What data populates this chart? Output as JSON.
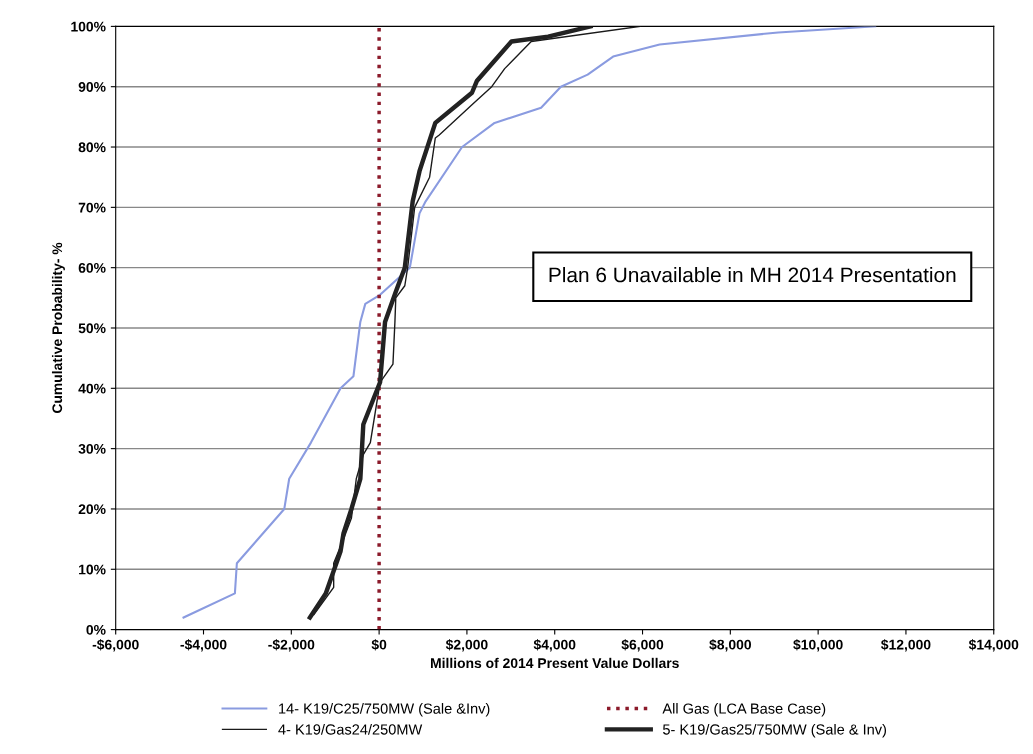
{
  "chart_data": {
    "type": "line",
    "xlabel": "Millions of 2014 Present Value Dollars",
    "ylabel": "Cumulative Probability- %",
    "xlim": [
      -6000,
      14000
    ],
    "xticks": [
      {
        "value": -6000,
        "label": "-$6,000"
      },
      {
        "value": -4000,
        "label": "-$4,000"
      },
      {
        "value": -2000,
        "label": "-$2,000"
      },
      {
        "value": 0,
        "label": "$0"
      },
      {
        "value": 2000,
        "label": "$2,000"
      },
      {
        "value": 4000,
        "label": "$4,000"
      },
      {
        "value": 6000,
        "label": "$6,000"
      },
      {
        "value": 8000,
        "label": "$8,000"
      },
      {
        "value": 10000,
        "label": "$10,000"
      },
      {
        "value": 12000,
        "label": "$12,000"
      },
      {
        "value": 14000,
        "label": "$14,000"
      }
    ],
    "ylim": [
      0,
      100
    ],
    "yticks": [
      {
        "value": 0,
        "label": "0%"
      },
      {
        "value": 10,
        "label": "10%"
      },
      {
        "value": 20,
        "label": "20%"
      },
      {
        "value": 30,
        "label": "30%"
      },
      {
        "value": 40,
        "label": "40%"
      },
      {
        "value": 50,
        "label": "50%"
      },
      {
        "value": 60,
        "label": "60%"
      },
      {
        "value": 70,
        "label": "70%"
      },
      {
        "value": 80,
        "label": "80%"
      },
      {
        "value": 90,
        "label": "90%"
      },
      {
        "value": 100,
        "label": "100%"
      }
    ],
    "grid": "y",
    "legend": "bottom",
    "marker": "none",
    "annotations": [
      "Plan 6 Unavailable in MH 2014 Presentation"
    ],
    "series": [
      {
        "name": "14- K19/C25/750MW (Sale &Inv)",
        "color": "#8a9be0",
        "line_style": "solid",
        "x": [
          -4455,
          -3285,
          -3240,
          -2160,
          -2048,
          -1553,
          -878,
          -585,
          -428,
          -315,
          22,
          700,
          920,
          1060,
          1890,
          2630,
          3690,
          4140,
          4750,
          5330,
          6390,
          9090,
          11300
        ],
        "values": [
          2,
          6,
          11,
          20,
          25,
          31,
          40,
          42,
          51,
          54,
          55.5,
          60,
          69,
          71,
          80,
          84,
          86.5,
          90,
          92,
          95,
          97,
          99,
          100
        ]
      },
      {
        "name": "4- K19/Gas24/250MW",
        "color": "#1a1a1a",
        "line_style": "solid",
        "x": [
          -1485,
          -1035,
          -1035,
          -810,
          -630,
          -520,
          -360,
          -200,
          22,
          315,
          360,
          380,
          585,
          650,
          810,
          1150,
          1280,
          1370,
          2115,
          2565,
          2860,
          3465,
          5940
        ],
        "values": [
          2.5,
          7,
          11,
          15,
          18.5,
          25,
          29,
          31,
          41,
          44,
          51,
          55,
          57,
          60,
          70,
          75,
          81.5,
          82,
          87,
          90,
          93,
          97.5,
          100
        ]
      },
      {
        "name": "All Gas (LCA Base Case)",
        "color": "#8b1a2a",
        "line_style": "dotted",
        "x": [
          0,
          0
        ],
        "values": [
          0,
          100
        ]
      },
      {
        "name": "5- K19/Gas25/750MW (Sale & Inv)",
        "color": "#222222",
        "line_style": "solid",
        "x": [
          -1575,
          -1215,
          -878,
          -810,
          -630,
          -428,
          -360,
          22,
          135,
          380,
          585,
          765,
          920,
          1280,
          2115,
          2230,
          3015,
          3850,
          4815
        ],
        "values": [
          2,
          6,
          13,
          16,
          20,
          25,
          34,
          41,
          51,
          56,
          60,
          71,
          76,
          84,
          89,
          91,
          97.5,
          98.3,
          100
        ]
      }
    ]
  }
}
